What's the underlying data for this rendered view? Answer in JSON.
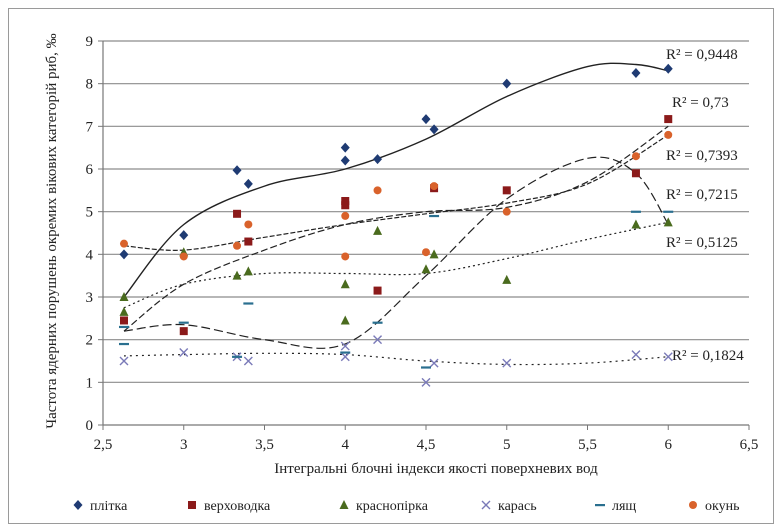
{
  "chart_data": {
    "type": "scatter",
    "xlabel": "Інтегральні блочні індекси якості поверхневих вод",
    "ylabel": "Частота ядерних порушень окремих вікових категорій риб, ‰",
    "xlim": [
      2.5,
      6.5
    ],
    "ylim": [
      0,
      9
    ],
    "xticks": [
      "2,5",
      "3",
      "3,5",
      "4",
      "4,5",
      "5",
      "5,5",
      "6",
      "6,5"
    ],
    "yticks": [
      "0",
      "1",
      "2",
      "3",
      "4",
      "5",
      "6",
      "7",
      "8",
      "9"
    ],
    "grid": "horizontal",
    "legend_position": "bottom",
    "series": [
      {
        "name": "плітка",
        "marker": "diamond",
        "color": "#1f3b73",
        "x": [
          2.63,
          3.0,
          3.33,
          3.4,
          4.0,
          4.0,
          4.2,
          4.5,
          4.55,
          5.0,
          5.8,
          6.0
        ],
        "y": [
          4.0,
          4.45,
          5.97,
          5.65,
          6.5,
          6.2,
          6.23,
          7.17,
          6.93,
          8.0,
          8.25,
          8.35
        ],
        "trend": [
          [
            2.63,
            3.0
          ],
          [
            3.0,
            4.7
          ],
          [
            3.5,
            5.6
          ],
          [
            4.0,
            6.0
          ],
          [
            4.5,
            6.7
          ],
          [
            5.0,
            7.7
          ],
          [
            5.5,
            8.4
          ],
          [
            5.8,
            8.45
          ],
          [
            6.0,
            8.3
          ]
        ],
        "r2": "R² = 0,9448"
      },
      {
        "name": "верховодка",
        "marker": "square",
        "color": "#8b1a1a",
        "x": [
          2.63,
          3.0,
          3.33,
          3.4,
          4.0,
          4.0,
          4.2,
          4.55,
          5.0,
          5.8,
          6.0
        ],
        "y": [
          2.45,
          2.2,
          4.95,
          4.3,
          5.25,
          5.15,
          3.15,
          5.55,
          5.5,
          5.9,
          7.17
        ],
        "trend": [
          [
            2.63,
            2.2
          ],
          [
            3.0,
            3.3
          ],
          [
            3.5,
            4.1
          ],
          [
            4.0,
            4.7
          ],
          [
            4.5,
            5.0
          ],
          [
            5.0,
            5.1
          ],
          [
            5.5,
            5.7
          ],
          [
            6.0,
            7.0
          ]
        ],
        "r2": "R² = 0,73"
      },
      {
        "name": "краснопірка",
        "marker": "triangle",
        "color": "#4a6b1e",
        "x": [
          2.63,
          2.63,
          3.0,
          3.33,
          3.4,
          4.0,
          4.0,
          4.2,
          4.5,
          4.55,
          5.0,
          5.8,
          6.0
        ],
        "y": [
          3.0,
          2.65,
          4.05,
          3.5,
          3.6,
          3.3,
          2.45,
          4.55,
          3.65,
          4.0,
          3.4,
          4.7,
          4.75
        ],
        "trend": [
          [
            2.63,
            2.75
          ],
          [
            3.0,
            3.3
          ],
          [
            3.5,
            3.55
          ],
          [
            4.0,
            3.55
          ],
          [
            4.5,
            3.55
          ],
          [
            5.0,
            3.9
          ],
          [
            5.5,
            4.35
          ],
          [
            6.0,
            4.75
          ]
        ],
        "r2": "R² = 0,5125"
      },
      {
        "name": "карась",
        "marker": "x",
        "color": "#7a7ab8",
        "x": [
          2.63,
          3.0,
          3.33,
          3.4,
          4.0,
          4.0,
          4.2,
          4.5,
          4.55,
          5.0,
          5.8,
          6.0
        ],
        "y": [
          1.5,
          1.7,
          1.6,
          1.5,
          1.6,
          1.85,
          2.0,
          1.0,
          1.45,
          1.45,
          1.65,
          1.6
        ],
        "trend": [
          [
            2.63,
            1.62
          ],
          [
            3.0,
            1.65
          ],
          [
            3.5,
            1.68
          ],
          [
            4.0,
            1.65
          ],
          [
            4.5,
            1.5
          ],
          [
            5.0,
            1.42
          ],
          [
            5.5,
            1.45
          ],
          [
            6.0,
            1.6
          ]
        ],
        "r2": "R² = 0,1824"
      },
      {
        "name": "лящ",
        "marker": "dash",
        "color": "#2a6f8f",
        "x": [
          2.63,
          2.63,
          3.0,
          3.33,
          3.4,
          4.0,
          4.2,
          4.5,
          4.55,
          5.8,
          6.0
        ],
        "y": [
          2.3,
          1.9,
          2.4,
          1.6,
          2.85,
          1.7,
          2.4,
          1.35,
          4.9,
          5.0,
          5.0
        ],
        "trend": [
          [
            2.63,
            2.2
          ],
          [
            3.0,
            2.35
          ],
          [
            3.5,
            2.0
          ],
          [
            4.0,
            1.9
          ],
          [
            4.5,
            3.5
          ],
          [
            5.0,
            5.3
          ],
          [
            5.5,
            6.25
          ],
          [
            5.8,
            5.9
          ],
          [
            6.0,
            4.7
          ]
        ],
        "r2": "R² = 0,7215"
      },
      {
        "name": "окунь",
        "marker": "circle",
        "color": "#d9622b",
        "x": [
          2.63,
          3.0,
          3.33,
          3.4,
          4.0,
          4.0,
          4.2,
          4.5,
          4.55,
          5.0,
          5.8,
          6.0
        ],
        "y": [
          4.25,
          3.95,
          4.2,
          4.7,
          4.9,
          3.95,
          5.5,
          4.05,
          5.6,
          5.0,
          6.3,
          6.8
        ],
        "trend": [
          [
            2.63,
            4.2
          ],
          [
            3.0,
            4.1
          ],
          [
            3.5,
            4.4
          ],
          [
            4.0,
            4.7
          ],
          [
            4.5,
            4.95
          ],
          [
            5.0,
            5.2
          ],
          [
            5.5,
            5.65
          ],
          [
            6.0,
            6.8
          ]
        ],
        "r2": "R² = 0,7393"
      }
    ]
  }
}
